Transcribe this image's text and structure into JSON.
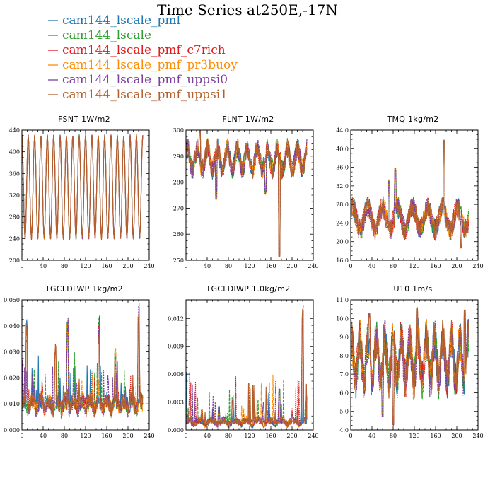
{
  "title": "Time Series at250E,-17N",
  "legend": [
    {
      "name": "cam144_lscale_pmf",
      "color": "#1f77b4"
    },
    {
      "name": "cam144_lscale",
      "color": "#2ca02c"
    },
    {
      "name": "cam144_lscale_pmf_c7rich",
      "color": "#e41a1c"
    },
    {
      "name": "cam144_lscale_pmf_pr3buoy",
      "color": "#ff8c00"
    },
    {
      "name": "cam144_lscale_pmf_uppsi0",
      "color": "#7b3fa0"
    },
    {
      "name": "cam144_lscale_pmf_uppsi1",
      "color": "#b5602c"
    }
  ],
  "chart_data": [
    {
      "type": "line",
      "title": "FSNT   1W/m2",
      "xlim": [
        0,
        240
      ],
      "ylim": [
        200,
        440
      ],
      "xticks": [
        0,
        40,
        80,
        120,
        160,
        200,
        240
      ],
      "xtick_labels": [
        "0",
        "40",
        "80",
        "120",
        "160",
        "200",
        "240"
      ],
      "yticks": [
        200,
        240,
        280,
        320,
        360,
        400,
        440
      ],
      "ytick_labels": [
        "200",
        "240",
        "280",
        "320",
        "360",
        "400",
        "440"
      ],
      "x_range": [
        0,
        228
      ],
      "pattern": "diurnal",
      "baseline": 335,
      "amplitude": 95,
      "period": 12,
      "spikes": [],
      "series_names": [
        "cam144_lscale_pmf",
        "cam144_lscale",
        "cam144_lscale_pmf_c7rich",
        "cam144_lscale_pmf_pr3buoy",
        "cam144_lscale_pmf_uppsi0",
        "cam144_lscale_pmf_uppsi1"
      ]
    },
    {
      "type": "line",
      "title": "FLNT   1W/m2",
      "xlim": [
        0,
        240
      ],
      "ylim": [
        250,
        300
      ],
      "xticks": [
        0,
        40,
        80,
        120,
        160,
        200,
        240
      ],
      "xtick_labels": [
        "0",
        "40",
        "80",
        "120",
        "160",
        "200",
        "240"
      ],
      "yticks": [
        250,
        260,
        270,
        280,
        290,
        300
      ],
      "ytick_labels": [
        "250",
        "260",
        "270",
        "280",
        "290",
        "300"
      ],
      "x_range": [
        0,
        228
      ],
      "pattern": "noisy",
      "baseline": 289,
      "amplitude": 5,
      "period": 6,
      "spikes": [
        [
          176,
          252
        ],
        [
          26,
          300
        ],
        [
          57,
          274
        ],
        [
          150,
          276
        ]
      ],
      "series_names": [
        "cam144_lscale_pmf",
        "cam144_lscale",
        "cam144_lscale_pmf_c7rich",
        "cam144_lscale_pmf_pr3buoy",
        "cam144_lscale_pmf_uppsi0",
        "cam144_lscale_pmf_uppsi1"
      ]
    },
    {
      "type": "line",
      "title": "TMQ   1kg/m2",
      "xlim": [
        0,
        240
      ],
      "ylim": [
        16.0,
        44.0
      ],
      "xticks": [
        0,
        40,
        80,
        120,
        160,
        200,
        240
      ],
      "xtick_labels": [
        "0",
        "40",
        "80",
        "120",
        "160",
        "200",
        "240"
      ],
      "yticks": [
        16,
        20,
        24,
        28,
        32,
        36,
        40,
        44
      ],
      "ytick_labels": [
        "16.0",
        "20.0",
        "24.0",
        "28.0",
        "32.0",
        "36.0",
        "40.0",
        "44.0"
      ],
      "x_range": [
        0,
        222
      ],
      "pattern": "noisy",
      "baseline": 25,
      "amplitude": 3,
      "period": 9,
      "spikes": [
        [
          176,
          41.5
        ],
        [
          84,
          35.5
        ],
        [
          72,
          33
        ],
        [
          208,
          19
        ]
      ],
      "series_names": [
        "cam144_lscale_pmf",
        "cam144_lscale",
        "cam144_lscale_pmf_c7rich",
        "cam144_lscale_pmf_pr3buoy",
        "cam144_lscale_pmf_uppsi0",
        "cam144_lscale_pmf_uppsi1"
      ]
    },
    {
      "type": "line",
      "title": "TGCLDLWP   1kg/m2",
      "xlim": [
        0,
        240
      ],
      "ylim": [
        0.0,
        0.05
      ],
      "xticks": [
        0,
        40,
        80,
        120,
        160,
        200,
        240
      ],
      "xtick_labels": [
        "0",
        "40",
        "80",
        "120",
        "160",
        "200",
        "240"
      ],
      "yticks": [
        0.0,
        0.01,
        0.02,
        0.03,
        0.04,
        0.05
      ],
      "ytick_labels": [
        "0.000",
        "0.010",
        "0.020",
        "0.030",
        "0.040",
        "0.050"
      ],
      "x_range": [
        0,
        228
      ],
      "pattern": "positive-spiky",
      "baseline": 0.006,
      "amplitude": 0.004,
      "period": 5,
      "spikes": [
        [
          9,
          0.043
        ],
        [
          86,
          0.044
        ],
        [
          145,
          0.044
        ],
        [
          220,
          0.049
        ],
        [
          63,
          0.035
        ],
        [
          176,
          0.032
        ]
      ],
      "series_names": [
        "cam144_lscale_pmf",
        "cam144_lscale",
        "cam144_lscale_pmf_c7rich",
        "cam144_lscale_pmf_pr3buoy",
        "cam144_lscale_pmf_uppsi0",
        "cam144_lscale_pmf_uppsi1"
      ]
    },
    {
      "type": "line",
      "title": "TGCLDIWP   1.0kg/m2",
      "xlim": [
        0,
        240
      ],
      "ylim": [
        0.0,
        0.014
      ],
      "xticks": [
        0,
        40,
        80,
        120,
        160,
        200,
        240
      ],
      "xtick_labels": [
        "0",
        "40",
        "80",
        "120",
        "160",
        "200",
        "240"
      ],
      "yticks": [
        0.0,
        0.003,
        0.006,
        0.009,
        0.012
      ],
      "ytick_labels": [
        "0.000",
        "0.003",
        "0.006",
        "0.009",
        "0.012"
      ],
      "x_range": [
        0,
        228
      ],
      "pattern": "positive-spiky",
      "baseline": 0.0004,
      "amplitude": 0.0005,
      "period": 7,
      "spikes": [
        [
          220,
          0.0135
        ],
        [
          176,
          0.0048
        ],
        [
          88,
          0.0037
        ],
        [
          146,
          0.003
        ],
        [
          62,
          0.0027
        ],
        [
          30,
          0.0022
        ],
        [
          200,
          0.0018
        ]
      ],
      "series_names": [
        "cam144_lscale_pmf",
        "cam144_lscale",
        "cam144_lscale_pmf_c7rich",
        "cam144_lscale_pmf_pr3buoy",
        "cam144_lscale_pmf_uppsi0",
        "cam144_lscale_pmf_uppsi1"
      ]
    },
    {
      "type": "line",
      "title": "U10   1m/s",
      "xlim": [
        0,
        240
      ],
      "ylim": [
        4.0,
        11.0
      ],
      "xticks": [
        0,
        40,
        80,
        120,
        160,
        200,
        240
      ],
      "xtick_labels": [
        "0",
        "40",
        "80",
        "120",
        "160",
        "200",
        "240"
      ],
      "yticks": [
        4,
        5,
        6,
        7,
        8,
        9,
        10,
        11
      ],
      "ytick_labels": [
        "4.0",
        "5.0",
        "6.0",
        "7.0",
        "8.0",
        "9.0",
        "10.0",
        "11.0"
      ],
      "x_range": [
        0,
        222
      ],
      "pattern": "noisy",
      "baseline": 7.8,
      "amplitude": 1.4,
      "period": 5,
      "spikes": [
        [
          80,
          4.3
        ],
        [
          125,
          10.5
        ],
        [
          215,
          10.4
        ],
        [
          35,
          10.2
        ],
        [
          60,
          4.8
        ]
      ],
      "series_names": [
        "cam144_lscale_pmf",
        "cam144_lscale",
        "cam144_lscale_pmf_c7rich",
        "cam144_lscale_pmf_pr3buoy",
        "cam144_lscale_pmf_uppsi0",
        "cam144_lscale_pmf_uppsi1"
      ]
    }
  ]
}
